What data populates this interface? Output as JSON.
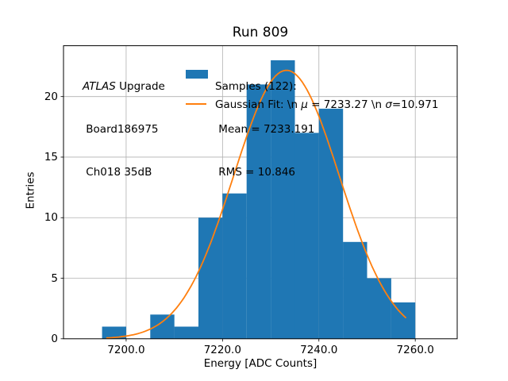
{
  "chart_data": {
    "type": "bar",
    "subtype": "histogram-with-gaussian-fit",
    "title": "Run 809",
    "xlabel": "Energy [ADC Counts]",
    "ylabel": "Entries",
    "xlim": [
      7187.0,
      7268.7
    ],
    "ylim": [
      0,
      24.2
    ],
    "x_ticks": [
      7200,
      7220,
      7240,
      7260
    ],
    "x_tick_labels": [
      "7200.0",
      "7220.0",
      "7240.0",
      "7260.0"
    ],
    "y_ticks": [
      0,
      5,
      10,
      15,
      20
    ],
    "y_tick_labels": [
      "0",
      "5",
      "10",
      "15",
      "20"
    ],
    "grid": true,
    "grid_color": "#b0b0b0",
    "bar_color": "#1f77b4",
    "curve_color": "#ff7f0e",
    "bin_edges": [
      7195,
      7200,
      7205,
      7210,
      7215,
      7220,
      7225,
      7230,
      7235,
      7240,
      7245,
      7250,
      7255,
      7260
    ],
    "counts": [
      1,
      0,
      2,
      1,
      10,
      12,
      21,
      23,
      17,
      19,
      8,
      5,
      3
    ],
    "total_entries": 122,
    "mean": 7233.191,
    "rms": 10.846,
    "gaussian_fit": {
      "mu": 7233.27,
      "sigma": 10.971,
      "amplitude": 22.17,
      "x_start": 7196.0,
      "x_end": 7258.4
    },
    "legend": {
      "samples_lines": [
        "Samples (122):",
        " Mean = 7233.191",
        " RMS = 10.846"
      ],
      "fit_parts": [
        "Gaussian Fit: \\n ",
        "μ",
        " = 7233.27 \\n ",
        "σ",
        "=10.971"
      ],
      "legend_position": "upper center",
      "frame": false
    },
    "annotation": {
      "line1_italic": "ATLAS",
      "line1_rest": " Upgrade",
      "line2": " Board186975",
      "line3": " Ch018 35dB"
    }
  }
}
